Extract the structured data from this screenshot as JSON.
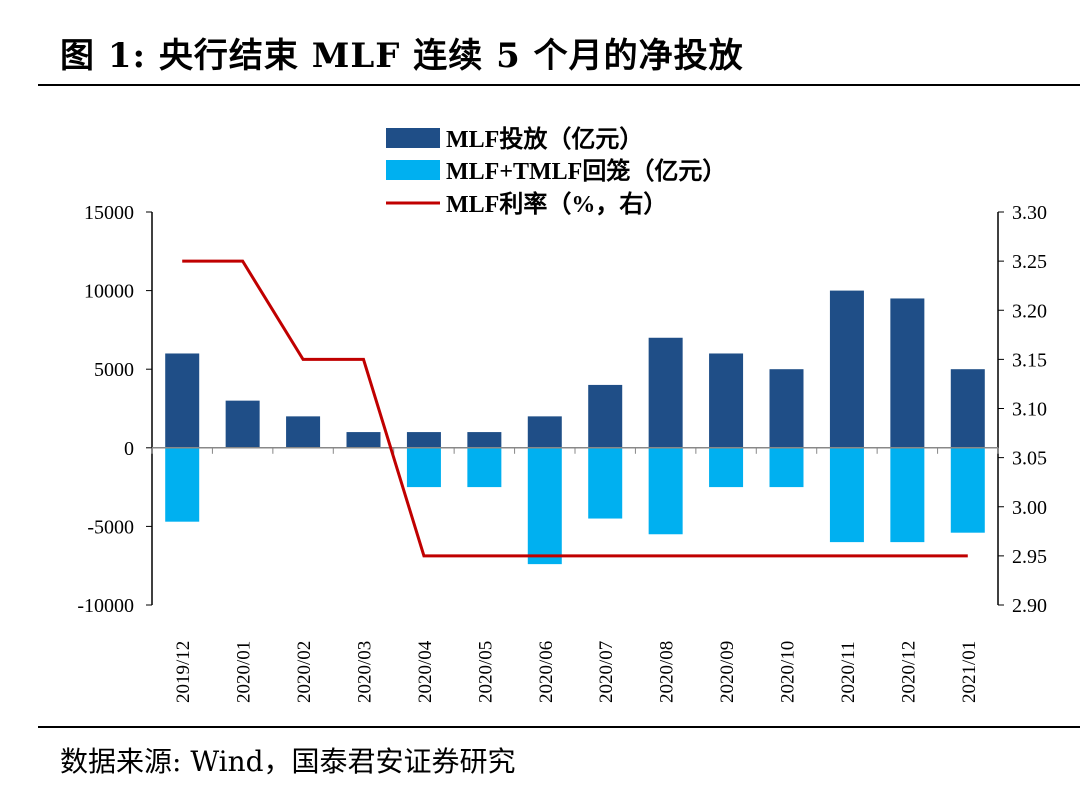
{
  "title": "图 1:  央行结束 MLF 连续 5 个月的净投放",
  "source": "数据来源:  Wind，国泰君安证券研究",
  "chart_data": {
    "type": "bar+line",
    "categories": [
      "2019/12",
      "2020/01",
      "2020/02",
      "2020/03",
      "2020/04",
      "2020/05",
      "2020/06",
      "2020/07",
      "2020/08",
      "2020/09",
      "2020/10",
      "2020/11",
      "2020/12",
      "2021/01"
    ],
    "series": [
      {
        "name": "MLF投放（亿元）",
        "type": "bar",
        "axis": "left",
        "color": "#1f4e87",
        "values": [
          6000,
          3000,
          2000,
          1000,
          1000,
          1000,
          2000,
          4000,
          7000,
          6000,
          5000,
          10000,
          9500,
          5000
        ]
      },
      {
        "name": "MLF+TMLF回笼（亿元）",
        "type": "bar",
        "axis": "left",
        "color": "#00b0f0",
        "values": [
          -4700,
          0,
          0,
          0,
          -2500,
          -2500,
          -7400,
          -4500,
          -5500,
          -2500,
          -2500,
          -6000,
          -6000,
          -5400
        ]
      },
      {
        "name": "MLF利率（%，右）",
        "type": "line",
        "axis": "right",
        "color": "#c00000",
        "values": [
          3.25,
          3.25,
          3.15,
          3.15,
          2.95,
          2.95,
          2.95,
          2.95,
          2.95,
          2.95,
          2.95,
          2.95,
          2.95,
          2.95
        ]
      }
    ],
    "y_left": {
      "ylim": [
        -10000,
        15000
      ],
      "ticks": [
        "15000",
        "10000",
        "5000",
        "0",
        "-5000",
        "-10000"
      ]
    },
    "y_right": {
      "ylim": [
        2.9,
        3.3
      ],
      "ticks": [
        "3.30",
        "3.25",
        "3.20",
        "3.15",
        "3.10",
        "3.05",
        "3.00",
        "2.95",
        "2.90"
      ]
    },
    "legend": "top-center",
    "grid": false
  }
}
